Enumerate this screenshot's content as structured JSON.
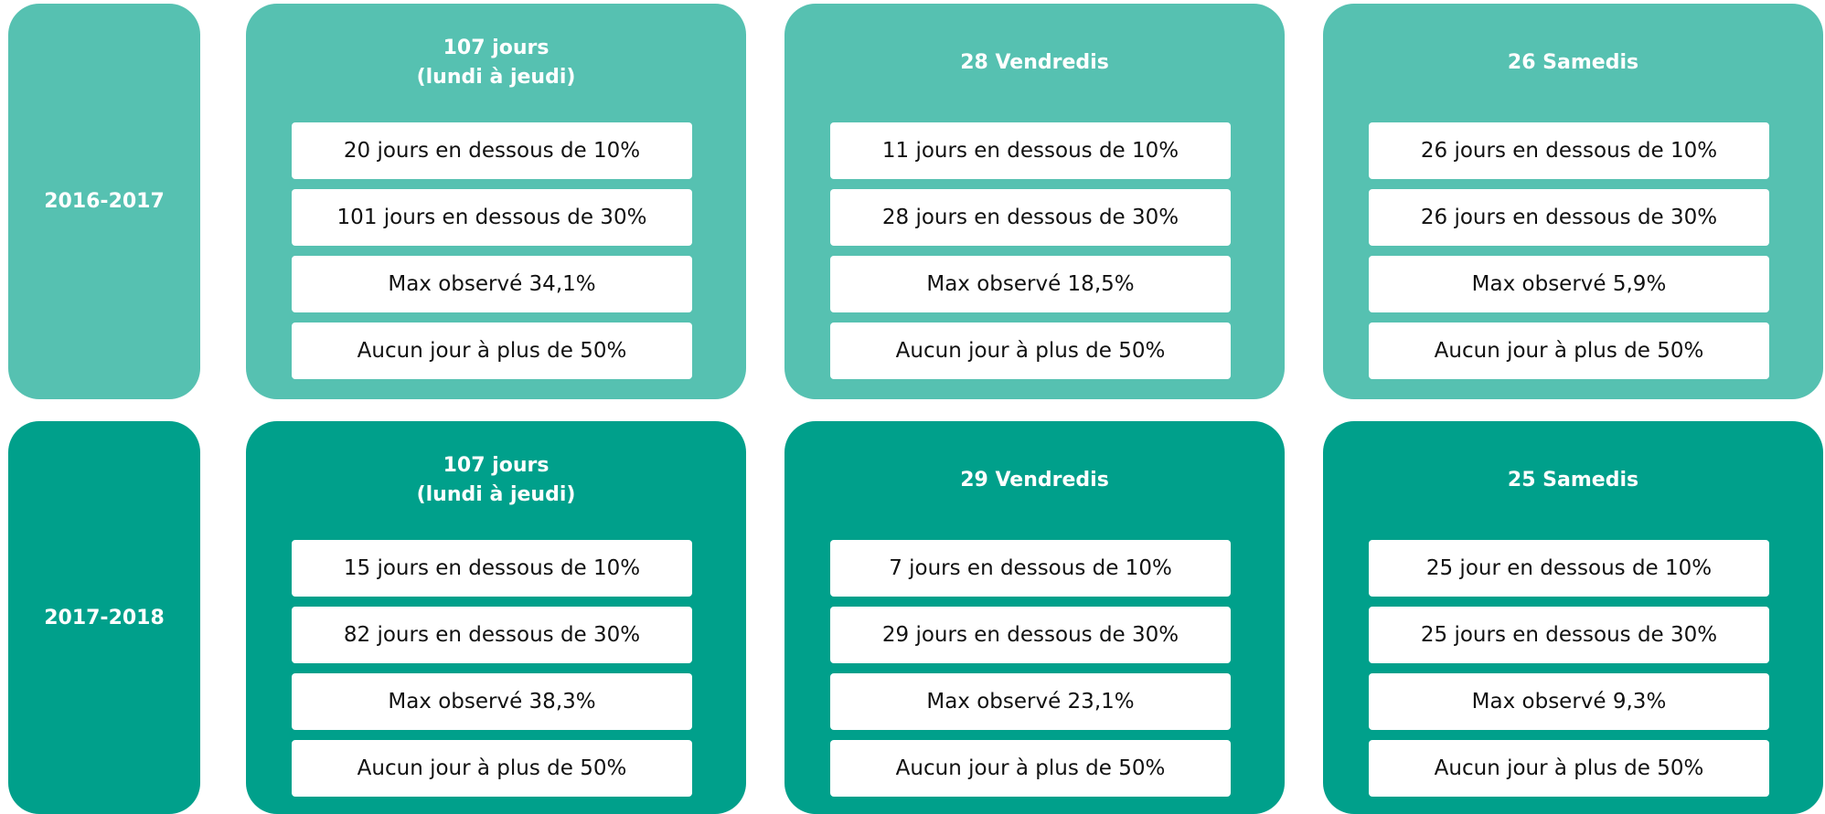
{
  "rows": [
    {
      "period": "2016-2017",
      "panels": [
        {
          "title": [
            "107 jours",
            "(lundi à jeudi)"
          ],
          "items": [
            "20 jours en dessous de 10%",
            "101 jours en dessous de 30%",
            "Max observé 34,1%",
            "Aucun jour à plus de 50%"
          ]
        },
        {
          "title": [
            "28 Vendredis"
          ],
          "items": [
            "11 jours en dessous de 10%",
            "28 jours en dessous de 30%",
            "Max observé 18,5%",
            "Aucun jour à plus de 50%"
          ]
        },
        {
          "title": [
            "26 Samedis"
          ],
          "items": [
            "26 jours en dessous de 10%",
            "26 jours en dessous de 30%",
            "Max observé 5,9%",
            "Aucun jour à plus de 50%"
          ]
        }
      ]
    },
    {
      "period": "2017-2018",
      "panels": [
        {
          "title": [
            "107 jours",
            "(lundi à jeudi)"
          ],
          "items": [
            "15 jours en dessous de 10%",
            "82 jours en dessous de 30%",
            "Max observé 38,3%",
            "Aucun jour à plus de 50%"
          ]
        },
        {
          "title": [
            "29 Vendredis"
          ],
          "items": [
            "7 jours en dessous de 10%",
            "29 jours en dessous de 30%",
            "Max observé 23,1%",
            "Aucun jour à plus de 50%"
          ]
        },
        {
          "title": [
            "25 Samedis"
          ],
          "items": [
            "25 jour en dessous de 10%",
            "25 jours en dessous de 30%",
            "Max observé 9,3%",
            "Aucun jour à plus de 50%"
          ]
        }
      ]
    }
  ]
}
